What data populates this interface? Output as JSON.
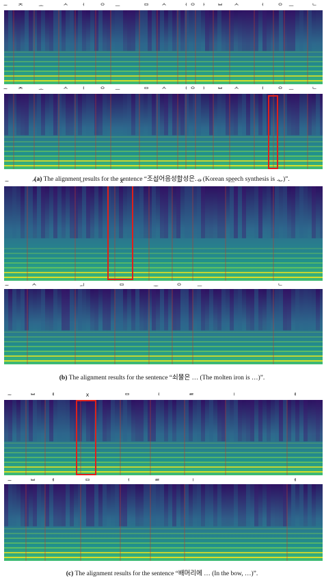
{
  "figure": {
    "panels": [
      {
        "id": "a",
        "caption_letter": "(a)",
        "caption_text": "The alignment results for the sentence “조선어음성합성은… (Korean speech synthesis is …)”.",
        "rows": [
          {
            "labels": [
              "~",
              "ᄌ",
              "ᅩ",
              "ᄉ",
              "ᅥ",
              "ᄋ",
              "ᅳ",
              "ᄆ",
              "ᄉ",
              "ᅥ",
              "ᄋ",
              "ᅡ",
              "ᄇ",
              "ᄉ",
              "ᅥ",
              "ᄋ",
              "ᅳ",
              "ᄂ"
            ],
            "highlight": null
          },
          {
            "labels": [
              "~",
              "ᄌ",
              "ᅩ",
              "ᄉ",
              "ᅥ",
              "ᄋ",
              "ᅳ",
              "ᄆ",
              "ᄉ",
              "ᅥ",
              "ᄋ",
              "ᅡ",
              "ᄇ",
              "ᄉ",
              "ᅥ",
              "ᄋ",
              "ᅳ",
              "ᄂ"
            ],
            "highlight": "box"
          }
        ]
      },
      {
        "id": "b",
        "caption_letter": "(b)",
        "caption_text": "The alignment results for the sentence “쇠물은 … (The molten iron is …)”.",
        "rows": [
          {
            "labels": [
              "~",
              "ᄉ",
              "ᅬ",
              "x",
              "ᄆ",
              "ᅮ",
              "ᄋ",
              "ᅳ",
              "ᄂ"
            ],
            "highlight": "box"
          },
          {
            "labels": [
              "~",
              "ᄉ",
              "ᅬ",
              "ᄆ",
              "ᅮ",
              "ᄋ",
              "ᅳ",
              "ᄂ"
            ],
            "highlight": null
          }
        ]
      },
      {
        "id": "c",
        "caption_letter": "(c)",
        "caption_text": "The alignment results for the sentence “배머리에 … (In the bow, …)”.",
        "rows": [
          {
            "labels": [
              "~",
              "ᄇ",
              "ᅦ",
              "x",
              "ᄆ",
              "ᅥ",
              "ᄅ",
              "ᅵ",
              "ᅦ"
            ],
            "highlight": "box"
          },
          {
            "labels": [
              "~",
              "ᄇ",
              "ᅦ",
              "ᄆ",
              "ᅥ",
              "ᄅ",
              "ᅵ",
              "ᅦ"
            ],
            "highlight": null
          }
        ]
      }
    ],
    "colors": {
      "spectrogram_low": "#2a0f5e",
      "spectrogram_mid": "#21918c",
      "spectrogram_high": "#f1e51d",
      "boundary_line": "#c0392b",
      "highlight_box": "#e0201a"
    }
  }
}
